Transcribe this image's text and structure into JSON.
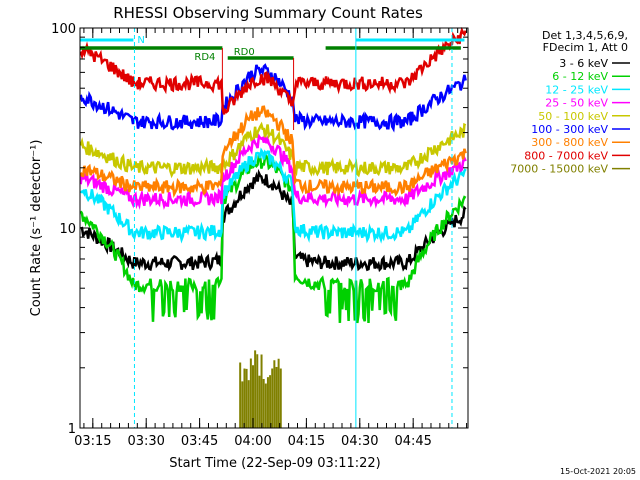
{
  "chart_data": {
    "type": "line",
    "title": "RHESSI Observing Summary Count Rates",
    "xlabel": "Start Time (22-Sep-09 03:11:22)",
    "ylabel": "Count Rate (s⁻¹ detector⁻¹)",
    "y_scale": "log",
    "ylim": [
      1,
      100
    ],
    "y_ticks": [
      {
        "value": 1,
        "label": "1"
      },
      {
        "value": 10,
        "label": "10"
      },
      {
        "value": 100,
        "label": "100"
      }
    ],
    "x_unit": "minutes after 03:11:22",
    "xlim": [
      0,
      109
    ],
    "x_ticks": [
      {
        "t": 3.6,
        "label": "03:15"
      },
      {
        "t": 18.6,
        "label": "03:30"
      },
      {
        "t": 33.6,
        "label": "03:45"
      },
      {
        "t": 48.6,
        "label": "04:00"
      },
      {
        "t": 63.6,
        "label": "04:15"
      },
      {
        "t": 78.6,
        "label": "04:30"
      },
      {
        "t": 93.6,
        "label": "04:45"
      }
    ],
    "legend": {
      "header": [
        "Det 1,3,4,5,6,9,",
        "FDecim 1, Att 0"
      ],
      "position": "right"
    },
    "series": [
      {
        "name": "3 - 6 keV",
        "color": "#000000",
        "edge": 10,
        "base": 6.7,
        "peak": 17
      },
      {
        "name": "6 - 12 keV",
        "color": "#00d000",
        "edge": 12,
        "base": 5.2,
        "peak": 21
      },
      {
        "name": "12 - 25 keV",
        "color": "#00e8ff",
        "edge": 16,
        "base": 9.5,
        "peak": 22
      },
      {
        "name": "25 - 50 keV",
        "color": "#ff00ff",
        "edge": 18,
        "base": 14,
        "peak": 26
      },
      {
        "name": "50 - 100 keV",
        "color": "#c8c800",
        "edge": 26,
        "base": 20,
        "peak": 29
      },
      {
        "name": "100 - 300 keV",
        "color": "#0000ff",
        "edge": 46,
        "base": 34,
        "peak": 58
      },
      {
        "name": "300 - 800 keV",
        "color": "#ff8000",
        "edge": 20,
        "base": 16,
        "peak": 36
      },
      {
        "name": "800 - 7000 keV",
        "color": "#e00000",
        "edge": 80,
        "base": 53,
        "peak": 51
      },
      {
        "name": "7000 - 15000 keV",
        "color": "#808000",
        "edge": 0,
        "base": 0,
        "peak": 1.9
      }
    ],
    "attenuator_states": [
      {
        "label": "RD4",
        "t_start": 0,
        "t_end": 40
      },
      {
        "label": "RD0",
        "t_start": 41.5,
        "t_end": 60
      },
      {
        "label": "",
        "t_start": 69,
        "t_end": 107
      }
    ],
    "night_flags": [
      {
        "label": "N",
        "t_start": 0,
        "t_end": 15
      }
    ],
    "saa_markers_t": [
      0,
      15.3,
      77.5,
      104.5
    ],
    "footer_date": "15-Oct-2021 20:05"
  }
}
